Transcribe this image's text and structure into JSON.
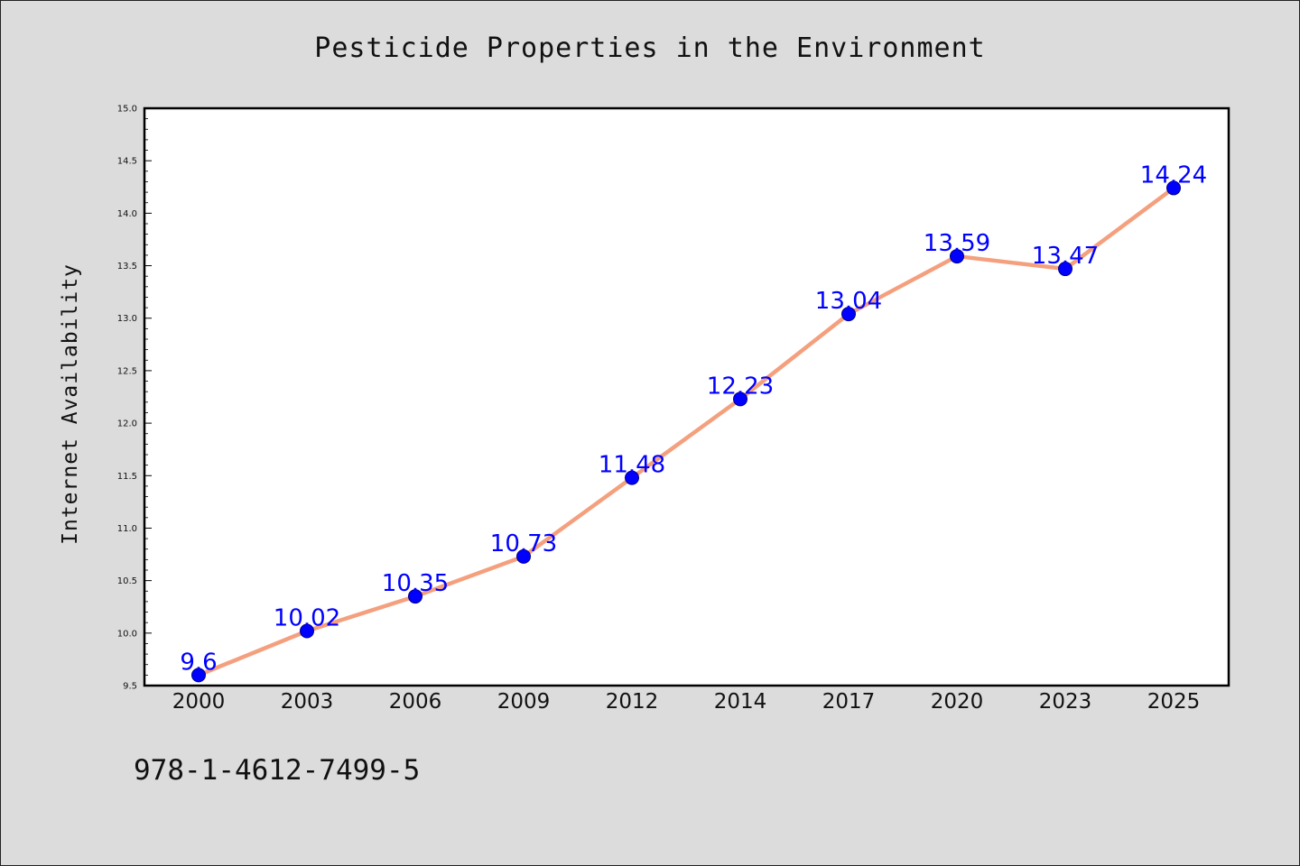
{
  "chart_data": {
    "type": "line",
    "title": "Pesticide Properties in the Environment",
    "xlabel": "",
    "ylabel": "Internet Availability",
    "categories": [
      "2000",
      "2003",
      "2006",
      "2009",
      "2012",
      "2014",
      "2017",
      "2020",
      "2023",
      "2025"
    ],
    "series": [
      {
        "values": [
          9.6,
          10.02,
          10.35,
          10.73,
          11.48,
          12.23,
          13.04,
          13.59,
          13.47,
          14.24
        ]
      }
    ],
    "data_labels": [
      "9.6",
      "10.02",
      "10.35",
      "10.73",
      "11.48",
      "12.23",
      "13.04",
      "13.59",
      "13.47",
      "14.24"
    ],
    "ylim": [
      9.5,
      15.0
    ],
    "yticks": [
      "9.5",
      "10.0",
      "10.5",
      "11.0",
      "11.5",
      "12.0",
      "12.5",
      "13.0",
      "13.5",
      "14.0",
      "14.5",
      "15.0"
    ],
    "grid": false,
    "line_color": "#f4a07e",
    "marker_color": "#0000ff",
    "label_color": "#0000ff"
  },
  "footer": {
    "isbn": "978-1-4612-7499-5"
  }
}
